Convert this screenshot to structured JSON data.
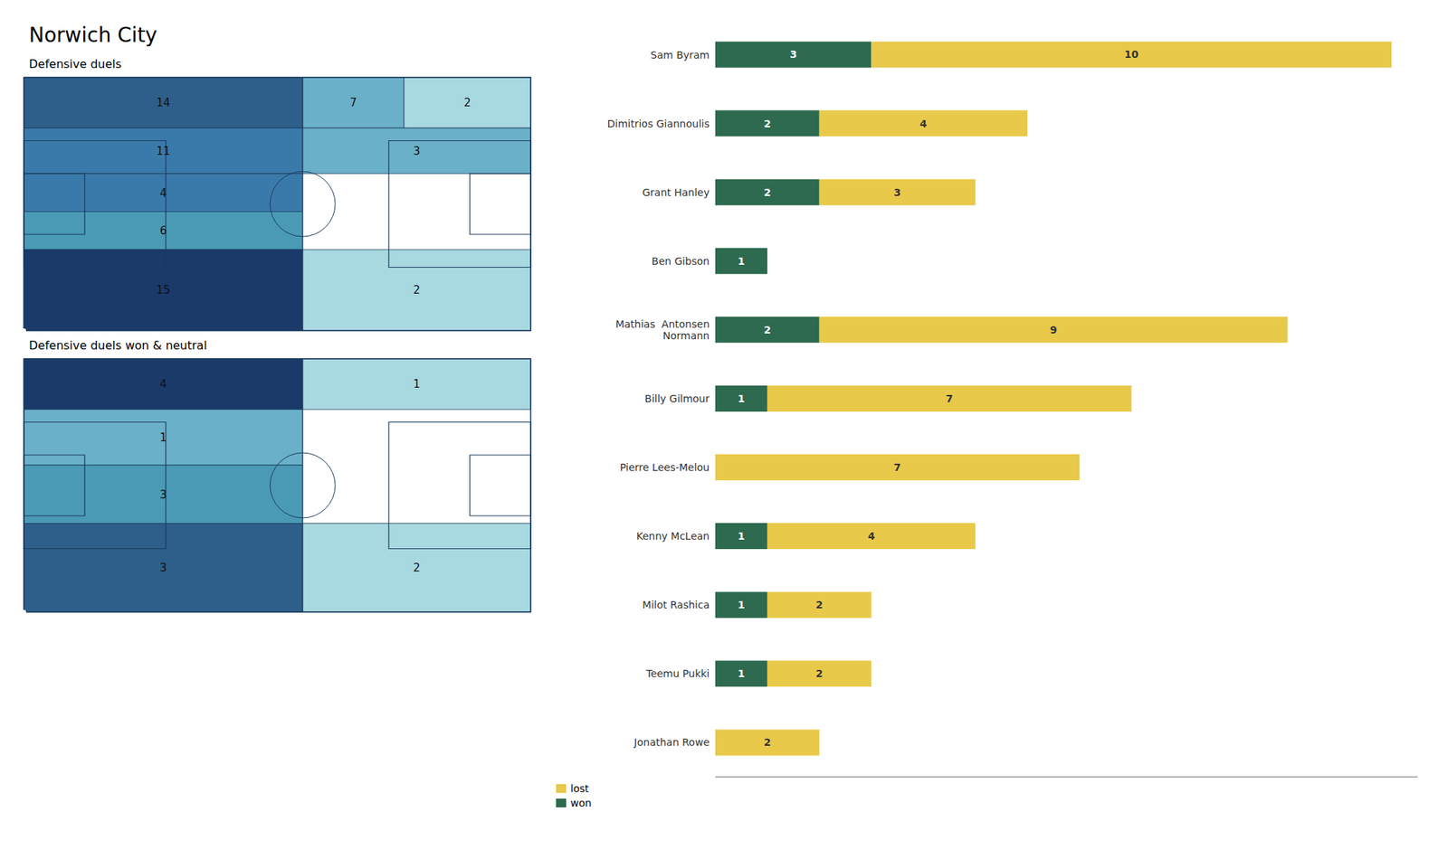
{
  "title": "Norwich City",
  "chart_data": [
    {
      "type": "heatmap",
      "title": "Defensive duels",
      "values": [
        14,
        7,
        2,
        11,
        3,
        4,
        6,
        15,
        2
      ],
      "colors": [
        "#2e5f8a",
        "#6ab0c8",
        "#a8d8e0",
        "#3a7aaa",
        "#6ab0c8",
        "#3a7aaa",
        "#4a9ab5",
        "#1a3a6a",
        "#a8d8e0"
      ],
      "data_labels": true
    },
    {
      "type": "heatmap",
      "title": "Defensive duels won & neutral",
      "values": [
        4,
        1,
        1,
        3,
        3,
        2
      ],
      "colors": [
        "#1a3a6a",
        "#a8d8e0",
        "#6ab0c8",
        "#4a9ab5",
        "#2e5f8a",
        "#a8d8e0"
      ],
      "data_labels": true
    },
    {
      "type": "bar",
      "orientation": "horizontal",
      "stacked": true,
      "categories": [
        "Sam Byram",
        "Dimitrios Giannoulis",
        "Grant Hanley",
        "Ben Gibson",
        "Mathias  Antonsen\nNormann",
        "Billy Gilmour",
        "Pierre Lees-Melou",
        "Kenny McLean",
        "Milot Rashica",
        "Teemu Pukki",
        "Jonathan Rowe"
      ],
      "series": [
        {
          "name": "won",
          "color": "#2d6a4f",
          "values": [
            3,
            2,
            2,
            1,
            2,
            1,
            0,
            1,
            1,
            1,
            0
          ]
        },
        {
          "name": "lost",
          "color": "#e8c94a",
          "values": [
            10,
            4,
            3,
            0,
            9,
            7,
            7,
            4,
            2,
            2,
            2
          ]
        }
      ],
      "xlim": [
        0,
        13.5
      ],
      "tick_labels": "y",
      "data_labels": true,
      "legend": "lower right",
      "grid": false
    }
  ]
}
